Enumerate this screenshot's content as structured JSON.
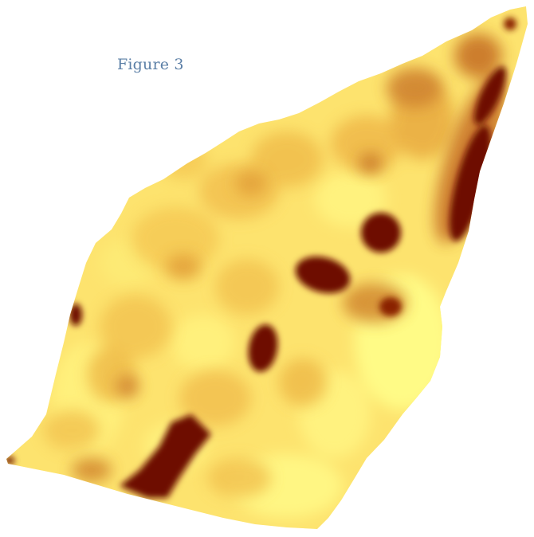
{
  "figure": {
    "label": "Figure 3"
  },
  "map": {
    "type": "raster-heatmap",
    "legend": "none",
    "color_ramp": [
      "#fffb86",
      "#fde46e",
      "#f5c955",
      "#e3a23a",
      "#b9651a",
      "#6e0a00"
    ]
  }
}
